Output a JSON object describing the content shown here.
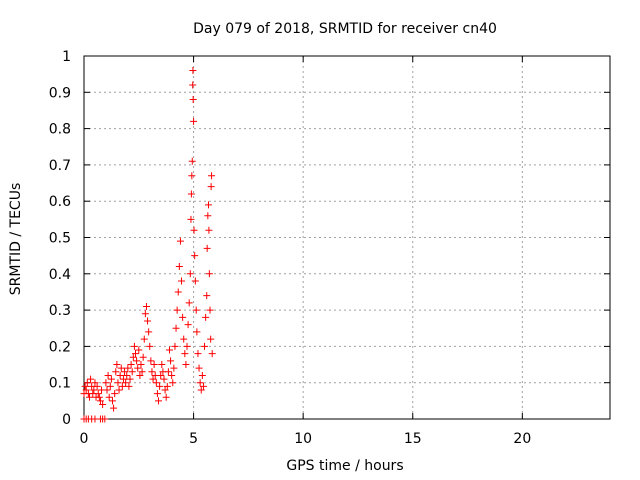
{
  "chart_data": {
    "type": "scatter",
    "title": "Day 079 of 2018, SRMTID for receiver cn40",
    "xlabel": "GPS time / hours",
    "ylabel": "SRMTID / TECUs",
    "xlim": [
      0,
      24
    ],
    "ylim": [
      0,
      1
    ],
    "x_ticks": [
      0,
      5,
      10,
      15,
      20
    ],
    "x_tick_labels": [
      "0",
      "5",
      "10",
      "15",
      "20"
    ],
    "y_ticks": [
      0,
      0.1,
      0.2,
      0.3,
      0.4,
      0.5,
      0.6,
      0.7,
      0.8,
      0.9,
      1
    ],
    "y_tick_labels": [
      "0",
      "0.1",
      "0.2",
      "0.3",
      "0.4",
      "0.5",
      "0.6",
      "0.7",
      "0.8",
      "0.9",
      "1"
    ],
    "grid": true,
    "marker": "+",
    "color": "#ff0000",
    "series": [
      {
        "name": "SRMTID",
        "points": [
          [
            0.0,
            0.0
          ],
          [
            0.1,
            0.0
          ],
          [
            0.2,
            0.0
          ],
          [
            0.35,
            0.0
          ],
          [
            0.5,
            0.0
          ],
          [
            0.75,
            0.0
          ],
          [
            0.85,
            0.0
          ],
          [
            0.95,
            0.0
          ],
          [
            0.0,
            0.07
          ],
          [
            0.05,
            0.09
          ],
          [
            0.1,
            0.08
          ],
          [
            0.15,
            0.1
          ],
          [
            0.2,
            0.07
          ],
          [
            0.25,
            0.06
          ],
          [
            0.3,
            0.11
          ],
          [
            0.35,
            0.09
          ],
          [
            0.4,
            0.07
          ],
          [
            0.45,
            0.08
          ],
          [
            0.5,
            0.1
          ],
          [
            0.55,
            0.06
          ],
          [
            0.6,
            0.09
          ],
          [
            0.65,
            0.07
          ],
          [
            0.7,
            0.06
          ],
          [
            0.75,
            0.05
          ],
          [
            0.8,
            0.08
          ],
          [
            0.85,
            0.04
          ],
          [
            1.0,
            0.1
          ],
          [
            1.05,
            0.08
          ],
          [
            1.1,
            0.12
          ],
          [
            1.15,
            0.06
          ],
          [
            1.2,
            0.09
          ],
          [
            1.25,
            0.11
          ],
          [
            1.3,
            0.05
          ],
          [
            1.35,
            0.03
          ],
          [
            1.4,
            0.07
          ],
          [
            1.45,
            0.13
          ],
          [
            1.5,
            0.15
          ],
          [
            1.55,
            0.1
          ],
          [
            1.6,
            0.08
          ],
          [
            1.65,
            0.12
          ],
          [
            1.7,
            0.14
          ],
          [
            1.75,
            0.09
          ],
          [
            1.8,
            0.11
          ],
          [
            1.85,
            0.13
          ],
          [
            1.9,
            0.1
          ],
          [
            1.95,
            0.12
          ],
          [
            2.0,
            0.14
          ],
          [
            2.05,
            0.09
          ],
          [
            2.1,
            0.11
          ],
          [
            2.15,
            0.15
          ],
          [
            2.2,
            0.13
          ],
          [
            2.25,
            0.17
          ],
          [
            2.3,
            0.2
          ],
          [
            2.35,
            0.18
          ],
          [
            2.4,
            0.16
          ],
          [
            2.45,
            0.14
          ],
          [
            2.5,
            0.19
          ],
          [
            2.55,
            0.12
          ],
          [
            2.6,
            0.15
          ],
          [
            2.65,
            0.13
          ],
          [
            2.7,
            0.17
          ],
          [
            2.75,
            0.22
          ],
          [
            2.8,
            0.29
          ],
          [
            2.85,
            0.31
          ],
          [
            2.9,
            0.27
          ],
          [
            2.95,
            0.24
          ],
          [
            3.0,
            0.2
          ],
          [
            3.05,
            0.16
          ],
          [
            3.1,
            0.13
          ],
          [
            3.15,
            0.11
          ],
          [
            3.2,
            0.15
          ],
          [
            3.25,
            0.12
          ],
          [
            3.3,
            0.1
          ],
          [
            3.35,
            0.07
          ],
          [
            3.4,
            0.05
          ],
          [
            3.45,
            0.09
          ],
          [
            3.5,
            0.12
          ],
          [
            3.55,
            0.15
          ],
          [
            3.6,
            0.13
          ],
          [
            3.65,
            0.11
          ],
          [
            3.7,
            0.08
          ],
          [
            3.75,
            0.06
          ],
          [
            3.8,
            0.09
          ],
          [
            3.85,
            0.13
          ],
          [
            3.9,
            0.19
          ],
          [
            3.95,
            0.16
          ],
          [
            4.0,
            0.12
          ],
          [
            4.05,
            0.1
          ],
          [
            4.1,
            0.14
          ],
          [
            4.15,
            0.2
          ],
          [
            4.2,
            0.25
          ],
          [
            4.25,
            0.3
          ],
          [
            4.3,
            0.35
          ],
          [
            4.35,
            0.42
          ],
          [
            4.4,
            0.49
          ],
          [
            4.45,
            0.38
          ],
          [
            4.5,
            0.28
          ],
          [
            4.55,
            0.22
          ],
          [
            4.6,
            0.18
          ],
          [
            4.65,
            0.15
          ],
          [
            4.7,
            0.2
          ],
          [
            4.75,
            0.26
          ],
          [
            4.8,
            0.32
          ],
          [
            4.85,
            0.4
          ],
          [
            4.88,
            0.55
          ],
          [
            4.9,
            0.62
          ],
          [
            4.92,
            0.67
          ],
          [
            4.94,
            0.71
          ],
          [
            4.96,
            0.92
          ],
          [
            4.97,
            0.96
          ],
          [
            4.98,
            0.88
          ],
          [
            5.0,
            0.82
          ],
          [
            5.02,
            0.52
          ],
          [
            5.05,
            0.45
          ],
          [
            5.08,
            0.38
          ],
          [
            5.12,
            0.3
          ],
          [
            5.15,
            0.24
          ],
          [
            5.2,
            0.18
          ],
          [
            5.25,
            0.14
          ],
          [
            5.3,
            0.1
          ],
          [
            5.35,
            0.08
          ],
          [
            5.4,
            0.12
          ],
          [
            5.45,
            0.09
          ],
          [
            5.5,
            0.2
          ],
          [
            5.55,
            0.28
          ],
          [
            5.6,
            0.34
          ],
          [
            5.62,
            0.47
          ],
          [
            5.65,
            0.56
          ],
          [
            5.68,
            0.59
          ],
          [
            5.7,
            0.52
          ],
          [
            5.72,
            0.4
          ],
          [
            5.75,
            0.3
          ],
          [
            5.78,
            0.22
          ],
          [
            5.8,
            0.64
          ],
          [
            5.82,
            0.67
          ],
          [
            5.85,
            0.18
          ]
        ]
      }
    ]
  }
}
